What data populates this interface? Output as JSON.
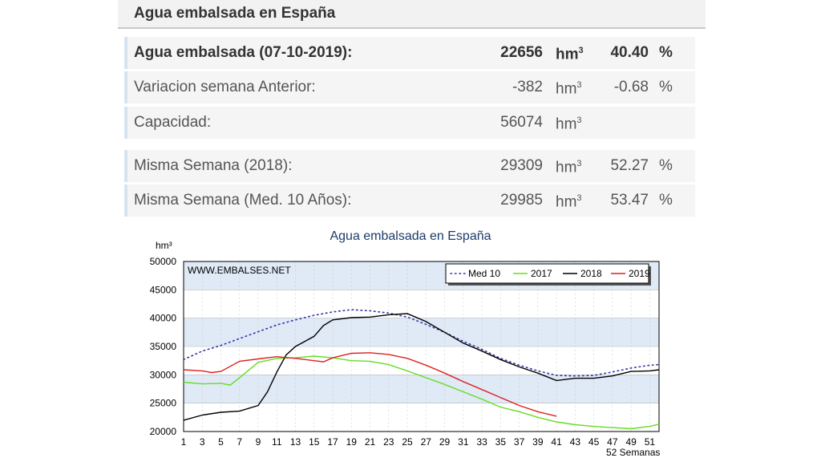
{
  "header": {
    "title": "Agua embalsada en España"
  },
  "rows": [
    {
      "label": "Agua embalsada (07-10-2019):",
      "value": "22656",
      "unit": "hm",
      "unit_sup": "3",
      "pct": "40.40",
      "pct_sign": "%"
    },
    {
      "label": "Variacion semana Anterior:",
      "value": "-382",
      "unit": "hm",
      "unit_sup": "3",
      "pct": "-0.68",
      "pct_sign": "%"
    },
    {
      "label": "Capacidad:",
      "value": "56074",
      "unit": "hm",
      "unit_sup": "3",
      "pct": "",
      "pct_sign": ""
    },
    {
      "label": "Misma Semana (2018):",
      "value": "29309",
      "unit": "hm",
      "unit_sup": "3",
      "pct": "52.27",
      "pct_sign": "%"
    },
    {
      "label": "Misma Semana (Med. 10 Años):",
      "value": "29985",
      "unit": "hm",
      "unit_sup": "3",
      "pct": "53.47",
      "pct_sign": "%"
    }
  ],
  "chart_data": {
    "type": "line",
    "title": "Agua embalsada en España",
    "ylabel": "hm³",
    "xlabel": "52 Semanas",
    "watermark": "WWW.EMBALSES.NET",
    "ylim": [
      20000,
      50000
    ],
    "yticks": [
      20000,
      25000,
      30000,
      35000,
      40000,
      45000,
      50000
    ],
    "xlim": [
      1,
      52
    ],
    "xticks": [
      1,
      3,
      5,
      7,
      9,
      11,
      13,
      15,
      17,
      19,
      21,
      23,
      25,
      27,
      29,
      31,
      33,
      35,
      37,
      39,
      41,
      43,
      45,
      47,
      49,
      51
    ],
    "grid": true,
    "legend_position": "top-right",
    "series": [
      {
        "name": "Med 10",
        "color": "#3333aa",
        "style": "dotted",
        "x": [
          1,
          3,
          5,
          7,
          9,
          11,
          13,
          15,
          17,
          19,
          21,
          23,
          25,
          27,
          29,
          31,
          33,
          35,
          37,
          39,
          41,
          43,
          45,
          47,
          49,
          51,
          52
        ],
        "values": [
          32700,
          34200,
          35200,
          36400,
          37600,
          38800,
          39700,
          40500,
          41100,
          41500,
          41300,
          40900,
          40200,
          38900,
          37500,
          35900,
          34500,
          32900,
          31700,
          30700,
          29900,
          29800,
          29900,
          30500,
          31200,
          31700,
          31800
        ]
      },
      {
        "name": "2017",
        "color": "#66dd22",
        "style": "solid",
        "x": [
          1,
          3,
          5,
          6,
          7,
          9,
          11,
          13,
          15,
          17,
          19,
          21,
          23,
          25,
          27,
          29,
          31,
          33,
          35,
          37,
          39,
          41,
          43,
          45,
          47,
          49,
          51,
          52
        ],
        "values": [
          28700,
          28400,
          28500,
          28200,
          29500,
          32200,
          32900,
          33000,
          33300,
          33000,
          32500,
          32400,
          31800,
          30700,
          29500,
          28300,
          27000,
          25700,
          24300,
          23500,
          22500,
          21700,
          21200,
          20900,
          20700,
          20500,
          20900,
          21300
        ]
      },
      {
        "name": "2018",
        "color": "#000000",
        "style": "solid",
        "x": [
          1,
          3,
          5,
          7,
          9,
          10,
          11,
          12,
          13,
          15,
          16,
          17,
          19,
          21,
          23,
          25,
          27,
          29,
          31,
          33,
          35,
          37,
          39,
          41,
          43,
          45,
          47,
          49,
          51,
          52
        ],
        "values": [
          22000,
          22900,
          23400,
          23600,
          24600,
          27000,
          30500,
          33500,
          35000,
          36800,
          38700,
          39700,
          40100,
          40200,
          40600,
          40800,
          39400,
          37500,
          35600,
          34200,
          32700,
          31400,
          30300,
          29000,
          29400,
          29400,
          29800,
          30600,
          30700,
          30900
        ]
      },
      {
        "name": "2019",
        "color": "#dd2222",
        "style": "solid",
        "x": [
          1,
          3,
          4,
          5,
          7,
          9,
          11,
          13,
          15,
          16,
          17,
          19,
          21,
          23,
          25,
          27,
          29,
          31,
          33,
          35,
          37,
          39,
          41
        ],
        "values": [
          30900,
          30700,
          30400,
          30600,
          32400,
          32800,
          33200,
          32900,
          32500,
          32300,
          33000,
          33800,
          33900,
          33600,
          32900,
          31700,
          30300,
          28800,
          27400,
          26000,
          24600,
          23500,
          22700
        ]
      }
    ]
  }
}
